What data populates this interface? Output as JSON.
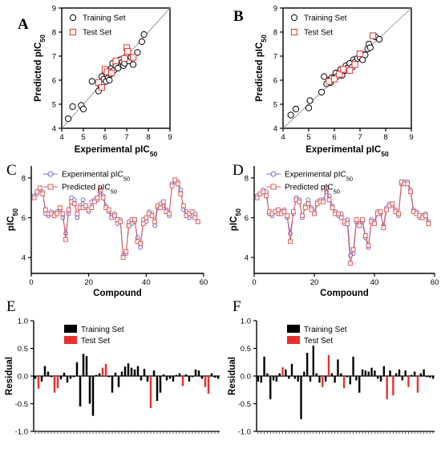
{
  "colors": {
    "training": "#000000",
    "test": "#e83030",
    "exp_line": "#6b6bdc",
    "pred_line": "#e05a5a",
    "identity": "#9a9a9a"
  },
  "chart_data": [
    {
      "panel": "A",
      "type": "scatter",
      "xlabel_main": "Experimental pIC",
      "xlabel_sub": "50",
      "ylabel_main": "Predicted pIC",
      "ylabel_sub": "50",
      "xlim": [
        4,
        9
      ],
      "ylim": [
        4,
        9
      ],
      "xticks": [
        "4",
        "5",
        "6",
        "7",
        "8",
        "9"
      ],
      "yticks": [
        "4",
        "5",
        "6",
        "7",
        "8",
        "9"
      ],
      "identity_line": true,
      "legend": [
        "Training Set",
        "Test Set"
      ],
      "series": [
        {
          "name": "Training Set",
          "marker": "circle",
          "x": [
            4.3,
            4.5,
            4.9,
            5.0,
            5.4,
            5.7,
            5.75,
            5.8,
            5.85,
            5.9,
            5.95,
            6.0,
            6.05,
            6.1,
            6.15,
            6.2,
            6.25,
            6.3,
            6.35,
            6.4,
            6.5,
            6.55,
            6.6,
            6.7,
            6.8,
            6.85,
            6.9,
            7.0,
            7.1,
            7.2,
            7.3,
            7.5,
            7.7,
            7.8
          ],
          "y": [
            4.4,
            4.9,
            4.95,
            4.8,
            5.95,
            5.55,
            5.85,
            5.75,
            6.15,
            5.9,
            6.05,
            6.35,
            5.95,
            6.2,
            6.1,
            6.0,
            6.25,
            6.5,
            6.7,
            6.4,
            6.6,
            6.8,
            6.5,
            6.85,
            6.75,
            6.6,
            6.7,
            7.0,
            6.8,
            6.95,
            6.65,
            7.15,
            7.6,
            7.9
          ]
        },
        {
          "name": "Test Set",
          "marker": "square",
          "x": [
            5.7,
            5.85,
            6.0,
            6.1,
            6.3,
            6.5,
            6.9,
            7.0,
            7.05,
            7.3
          ],
          "y": [
            5.9,
            5.7,
            6.45,
            6.35,
            6.3,
            6.8,
            6.9,
            7.35,
            7.2,
            6.95
          ]
        }
      ]
    },
    {
      "panel": "B",
      "type": "scatter",
      "xlabel_main": "Experimental pIC",
      "xlabel_sub": "50",
      "ylabel_main": "Predicted pIC",
      "ylabel_sub": "50",
      "xlim": [
        4,
        9
      ],
      "ylim": [
        4,
        9
      ],
      "xticks": [
        "4",
        "5",
        "6",
        "7",
        "8",
        "9"
      ],
      "yticks": [
        "4",
        "5",
        "6",
        "7",
        "8",
        "9"
      ],
      "identity_line": true,
      "legend": [
        "Training Set",
        "Test Set"
      ],
      "series": [
        {
          "name": "Training Set",
          "marker": "circle",
          "x": [
            4.3,
            4.5,
            5.0,
            5.05,
            5.5,
            5.6,
            5.7,
            5.8,
            5.85,
            5.9,
            6.0,
            6.05,
            6.1,
            6.2,
            6.25,
            6.3,
            6.4,
            6.45,
            6.5,
            6.6,
            6.7,
            6.75,
            6.8,
            6.9,
            7.0,
            7.05,
            7.1,
            7.2,
            7.3,
            7.35,
            7.4,
            7.6,
            7.75
          ],
          "y": [
            4.55,
            4.8,
            4.85,
            5.15,
            5.5,
            6.15,
            5.85,
            6.0,
            5.9,
            6.1,
            6.05,
            6.3,
            6.15,
            6.25,
            6.45,
            6.2,
            6.4,
            6.6,
            6.5,
            6.7,
            6.55,
            6.85,
            6.75,
            6.9,
            6.95,
            7.1,
            6.85,
            7.05,
            7.3,
            7.5,
            7.35,
            7.8,
            7.7
          ]
        },
        {
          "name": "Test Set",
          "marker": "square",
          "x": [
            5.8,
            6.0,
            6.2,
            6.35,
            6.6,
            6.8,
            7.0,
            7.5
          ],
          "y": [
            5.95,
            6.05,
            6.25,
            6.45,
            6.4,
            6.65,
            7.1,
            7.85
          ]
        }
      ]
    },
    {
      "panel": "C",
      "type": "line",
      "xlabel": "Compound",
      "ylabel_main": "pIC",
      "ylabel_sub": "50",
      "xlim": [
        0,
        60
      ],
      "ylim": [
        3.2,
        8.6
      ],
      "xticks": [
        "0",
        "20",
        "40",
        "60"
      ],
      "yticks": [
        "4",
        "6",
        "8"
      ],
      "legend_main": [
        "Experimental pIC",
        "Predicted pIC"
      ],
      "legend_sub": "50",
      "x": [
        1,
        2,
        3,
        4,
        5,
        6,
        7,
        8,
        9,
        10,
        11,
        12,
        13,
        14,
        15,
        16,
        17,
        18,
        19,
        20,
        21,
        22,
        23,
        24,
        25,
        26,
        27,
        28,
        29,
        30,
        31,
        32,
        33,
        34,
        35,
        36,
        37,
        38,
        39,
        40,
        41,
        42,
        43,
        44,
        45,
        46,
        47,
        48,
        49,
        50,
        51,
        52,
        53,
        54,
        55,
        56,
        57,
        58
      ],
      "series": [
        {
          "name": "Experimental pIC50",
          "marker": "circle",
          "values": [
            7.1,
            7.2,
            7.4,
            7.3,
            6.2,
            6.1,
            6.3,
            6.2,
            6.3,
            6.4,
            6.0,
            5.2,
            6.2,
            7.0,
            6.9,
            6.0,
            6.6,
            6.9,
            6.5,
            6.3,
            6.8,
            6.9,
            6.9,
            7.3,
            7.1,
            6.6,
            6.3,
            6.1,
            6.2,
            5.7,
            5.9,
            4.1,
            4.2,
            5.8,
            5.7,
            5.8,
            5.0,
            4.5,
            5.9,
            5.8,
            6.3,
            6.2,
            5.6,
            6.5,
            6.7,
            6.6,
            6.4,
            6.1,
            7.7,
            7.8,
            7.8,
            7.4,
            6.4,
            6.3,
            6.0,
            6.1,
            6.2,
            5.8
          ]
        },
        {
          "name": "Predicted pIC50",
          "marker": "square",
          "values": [
            7.0,
            7.3,
            7.5,
            7.2,
            6.4,
            6.2,
            6.2,
            6.1,
            6.2,
            6.5,
            6.2,
            4.9,
            6.4,
            6.8,
            6.7,
            6.2,
            6.5,
            6.5,
            6.6,
            6.4,
            6.5,
            6.8,
            7.0,
            7.4,
            7.0,
            6.5,
            6.4,
            6.0,
            6.1,
            5.9,
            5.8,
            4.0,
            4.3,
            5.6,
            5.9,
            5.9,
            4.8,
            4.7,
            5.7,
            6.0,
            6.2,
            6.1,
            5.8,
            6.6,
            6.5,
            6.8,
            6.3,
            6.2,
            7.6,
            7.9,
            7.7,
            7.2,
            6.6,
            6.1,
            6.2,
            6.3,
            6.0,
            5.8
          ]
        }
      ]
    },
    {
      "panel": "D",
      "type": "line",
      "xlabel": "Compound",
      "ylabel_main": "pIC",
      "ylabel_sub": "50",
      "xlim": [
        0,
        60
      ],
      "ylim": [
        3.2,
        8.6
      ],
      "xticks": [
        "0",
        "20",
        "40",
        "60"
      ],
      "yticks": [
        "4",
        "6",
        "8"
      ],
      "legend_main": [
        "Experimental pIC",
        "Predicted pIC"
      ],
      "legend_sub": "50",
      "x": [
        1,
        2,
        3,
        4,
        5,
        6,
        7,
        8,
        9,
        10,
        11,
        12,
        13,
        14,
        15,
        16,
        17,
        18,
        19,
        20,
        21,
        22,
        23,
        24,
        25,
        26,
        27,
        28,
        29,
        30,
        31,
        32,
        33,
        34,
        35,
        36,
        37,
        38,
        39,
        40,
        41,
        42,
        43,
        44,
        45,
        46,
        47,
        48,
        49,
        50,
        51,
        52,
        53,
        54,
        55,
        56,
        57,
        58
      ],
      "series": [
        {
          "name": "Experimental pIC50",
          "marker": "circle",
          "values": [
            7.1,
            7.2,
            7.4,
            7.3,
            6.2,
            6.1,
            6.3,
            6.2,
            6.3,
            6.4,
            6.0,
            5.2,
            6.2,
            7.0,
            6.9,
            6.0,
            6.6,
            6.9,
            6.5,
            6.3,
            6.8,
            6.9,
            6.9,
            7.3,
            7.1,
            6.6,
            6.3,
            6.1,
            6.2,
            5.7,
            5.9,
            4.1,
            4.2,
            5.8,
            5.7,
            5.8,
            5.0,
            4.5,
            5.9,
            5.8,
            6.3,
            6.2,
            5.6,
            6.5,
            6.7,
            6.6,
            6.4,
            6.1,
            7.7,
            7.8,
            7.8,
            7.4,
            6.4,
            6.3,
            6.0,
            6.1,
            6.2,
            5.8
          ]
        },
        {
          "name": "Predicted pIC50",
          "marker": "square",
          "values": [
            7.0,
            7.2,
            7.3,
            7.1,
            6.3,
            6.2,
            6.3,
            6.4,
            6.2,
            6.3,
            6.1,
            4.8,
            6.3,
            6.9,
            6.8,
            6.1,
            6.5,
            6.7,
            6.4,
            6.2,
            6.7,
            6.8,
            6.8,
            7.5,
            6.9,
            6.5,
            6.2,
            6.2,
            6.0,
            5.8,
            5.7,
            3.7,
            4.4,
            5.9,
            5.6,
            5.9,
            5.1,
            4.6,
            5.8,
            5.7,
            6.2,
            6.3,
            5.5,
            6.4,
            6.6,
            6.7,
            6.3,
            6.2,
            7.8,
            7.7,
            7.7,
            7.3,
            6.3,
            6.2,
            6.1,
            6.0,
            6.1,
            5.7
          ]
        }
      ]
    },
    {
      "panel": "E",
      "type": "bar",
      "ylabel": "Residual",
      "ylim": [
        -1.0,
        1.0
      ],
      "yticks": [
        "-1.0",
        "-0.5",
        "0.0",
        "0.5",
        "1.0"
      ],
      "legend": [
        "Training Set",
        "Test Set"
      ],
      "values": [
        -0.05,
        -0.23,
        -0.1,
        0.18,
        0.08,
        -0.02,
        -0.3,
        -0.22,
        -0.06,
        0.06,
        -0.12,
        -0.05,
        -0.02,
        0.25,
        -0.55,
        0.4,
        0.36,
        -0.5,
        -0.72,
        0.02,
        0.05,
        0.15,
        0.22,
        -0.02,
        -0.3,
        0.06,
        -0.2,
        0.08,
        0.17,
        0.23,
        0.15,
        0.12,
        0.18,
        -0.08,
        0.13,
        -0.1,
        -0.58,
        0.1,
        -0.45,
        -0.3,
        0.03,
        -0.08,
        -0.05,
        -0.1,
        0.02,
        0.05,
        -0.18,
        0.03,
        -0.1,
        -0.02,
        0.12,
        0.1,
        -0.05,
        -0.2,
        -0.32,
        0.05,
        -0.03,
        -0.05
      ],
      "is_test": [
        0,
        1,
        0,
        0,
        0,
        0,
        1,
        1,
        0,
        0,
        0,
        0,
        0,
        0,
        0,
        0,
        0,
        0,
        0,
        0,
        0,
        1,
        1,
        0,
        0,
        0,
        0,
        0,
        0,
        0,
        0,
        0,
        0,
        0,
        0,
        0,
        1,
        0,
        0,
        0,
        0,
        0,
        0,
        0,
        0,
        0,
        1,
        0,
        0,
        0,
        0,
        0,
        0,
        1,
        1,
        0,
        0,
        0
      ]
    },
    {
      "panel": "F",
      "type": "bar",
      "ylabel": "Residual",
      "ylim": [
        -1.0,
        1.0
      ],
      "yticks": [
        "-1.0",
        "-0.5",
        "0.0",
        "0.5",
        "1.0"
      ],
      "legend": [
        "Training Set",
        "Test Set"
      ],
      "values": [
        -0.1,
        -0.12,
        0.35,
        0.05,
        -0.42,
        -0.08,
        -0.1,
        0.05,
        0.16,
        0.12,
        -0.05,
        0.22,
        -0.05,
        -0.1,
        -0.78,
        0.08,
        0.42,
        -0.1,
        0.55,
        0.05,
        -0.12,
        -0.2,
        -0.1,
        0.38,
        0.05,
        -0.12,
        0.3,
        0.05,
        -0.22,
        -0.02,
        -0.15,
        0.35,
        -0.08,
        -0.3,
        0.12,
        0.1,
        0.08,
        0.15,
        0.1,
        -0.05,
        -0.1,
        0.18,
        -0.42,
        0.1,
        -0.35,
        0.05,
        0.12,
        -0.08,
        0.1,
        -0.2,
        0.02,
        0.08,
        -0.3,
        0.05,
        0.12,
        -0.02,
        -0.03,
        -0.05
      ],
      "is_test": [
        0,
        0,
        0,
        0,
        0,
        0,
        0,
        0,
        1,
        0,
        0,
        0,
        0,
        0,
        0,
        0,
        0,
        0,
        0,
        0,
        0,
        1,
        0,
        1,
        0,
        0,
        0,
        0,
        1,
        0,
        0,
        0,
        0,
        0,
        0,
        0,
        0,
        0,
        0,
        0,
        0,
        0,
        1,
        0,
        1,
        0,
        0,
        0,
        0,
        1,
        0,
        0,
        1,
        0,
        0,
        0,
        0,
        0
      ]
    }
  ]
}
